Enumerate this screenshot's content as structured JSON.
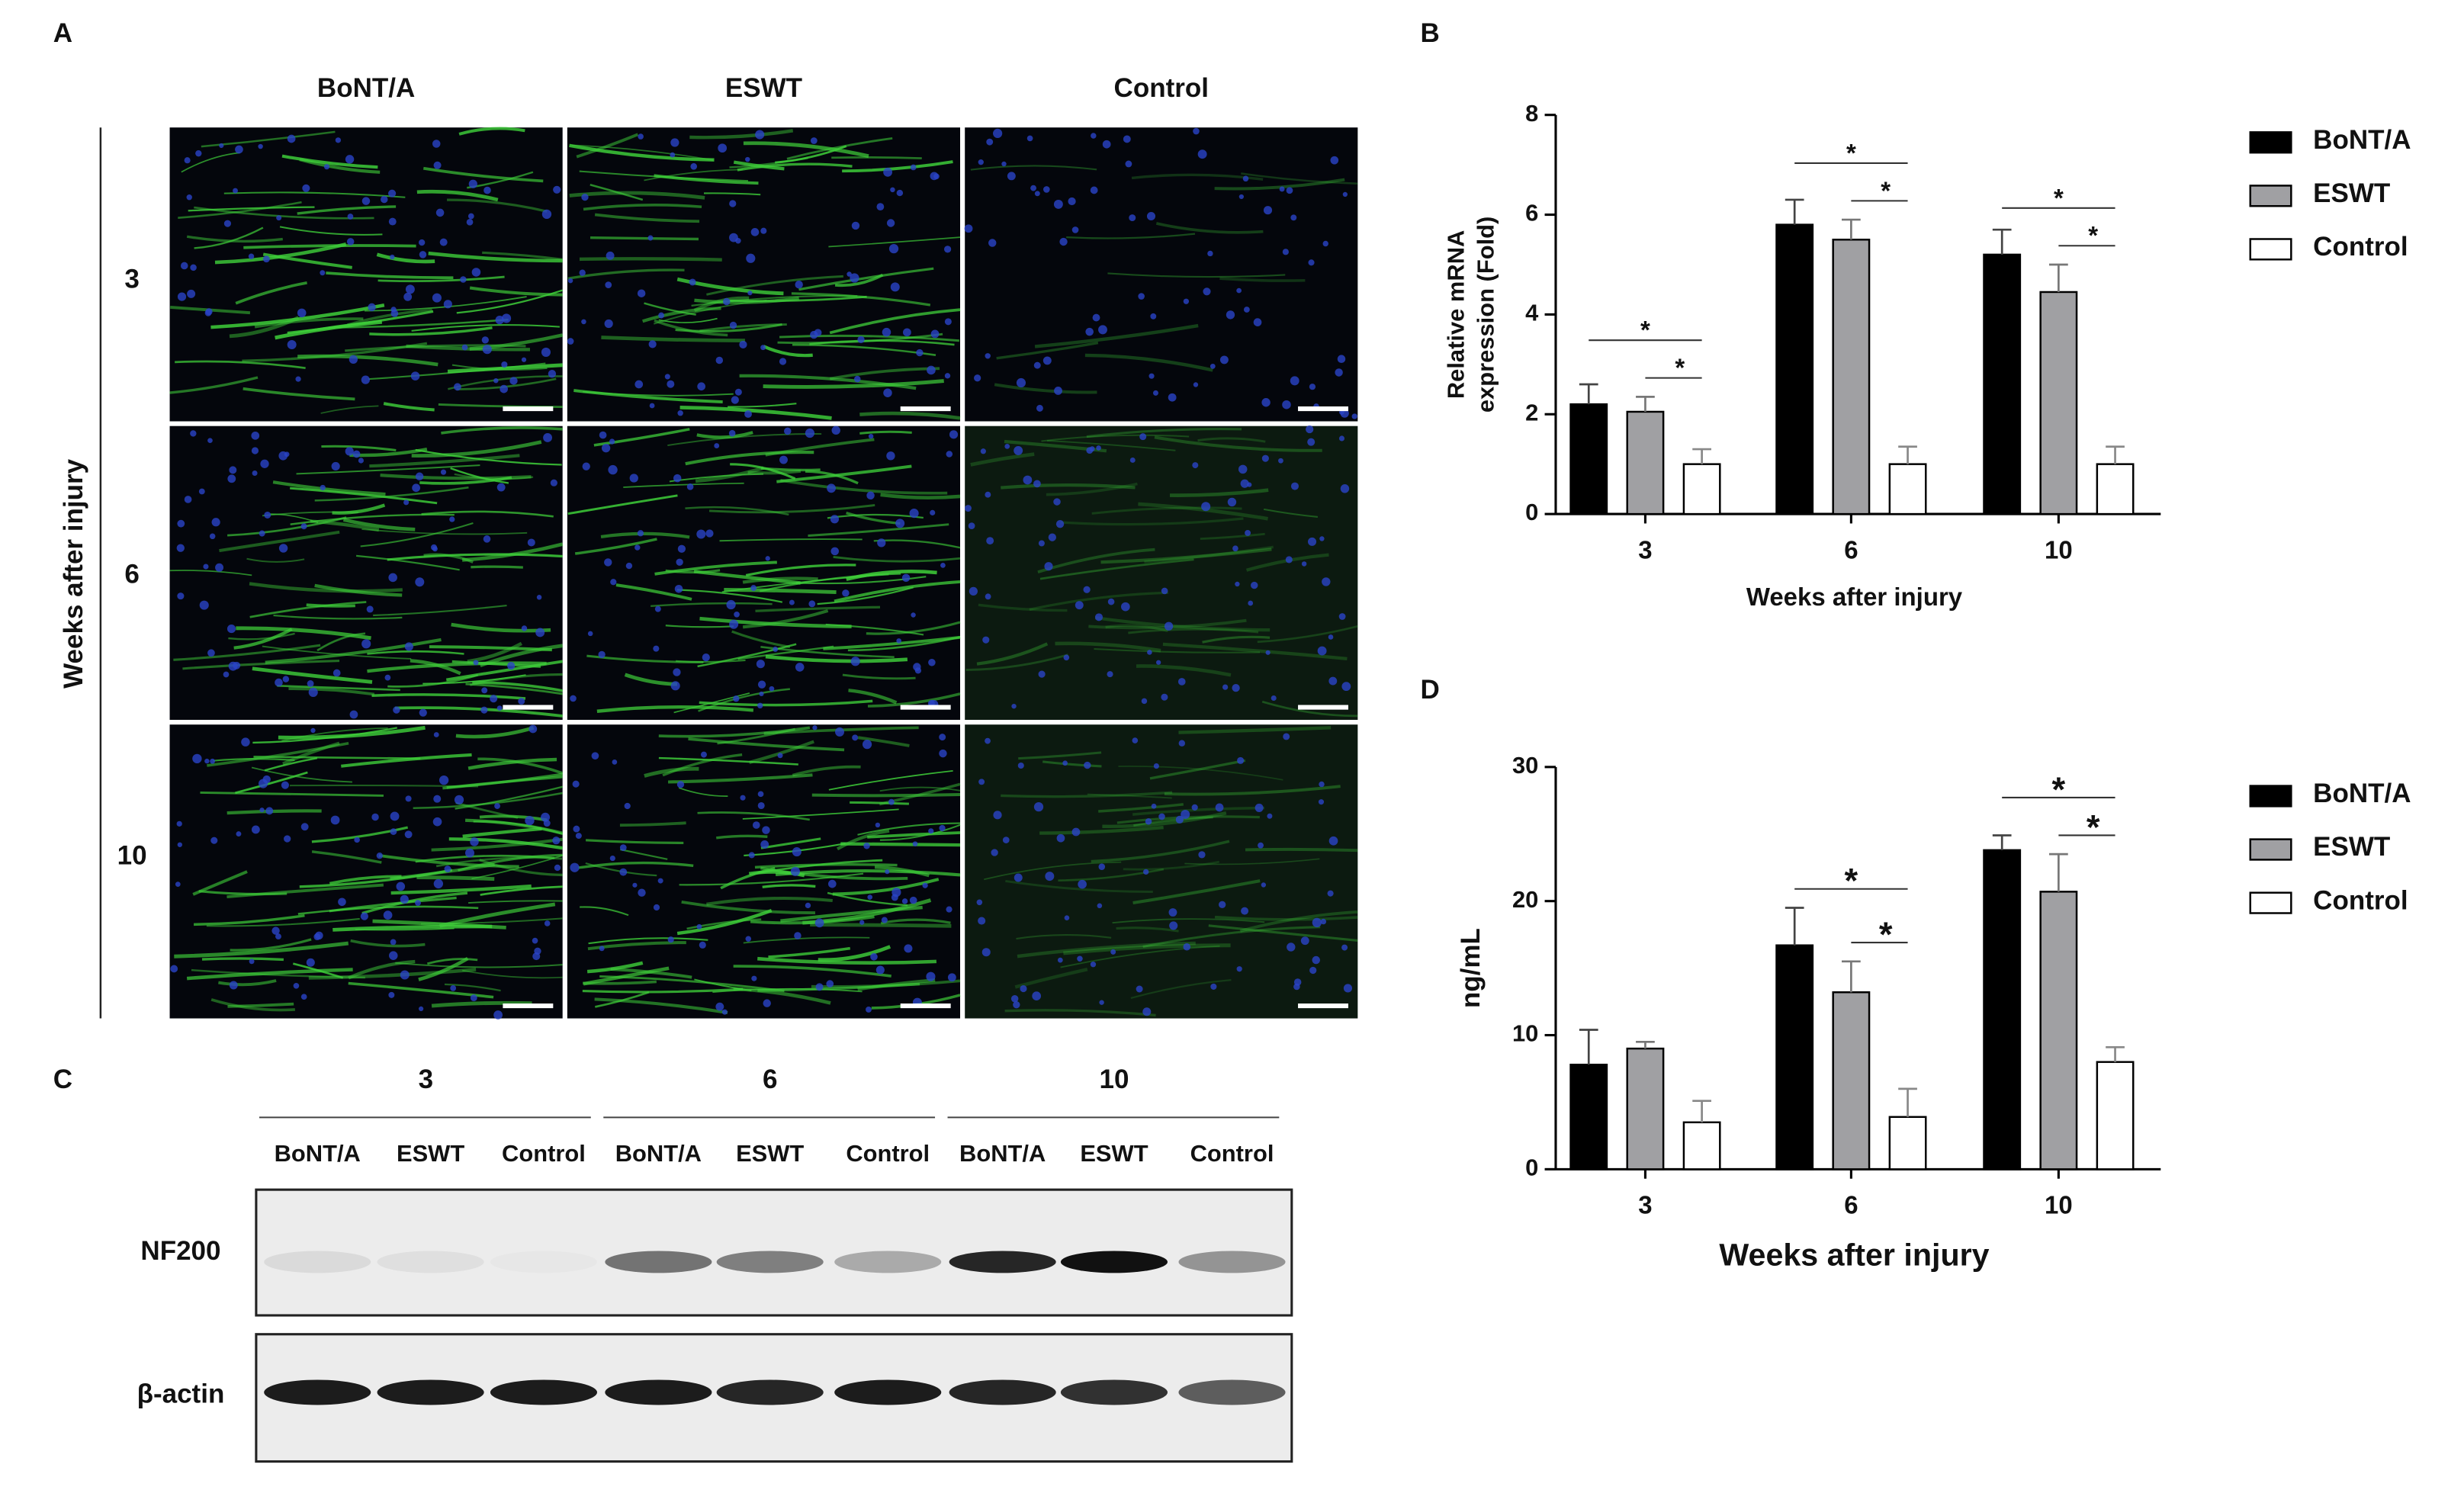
{
  "panels": {
    "a": "A",
    "b": "B",
    "c": "C",
    "d": "D"
  },
  "immunofluorescence": {
    "columns": [
      "BoNT/A",
      "ESWT",
      "Control"
    ],
    "rows": [
      "3",
      "6",
      "10"
    ],
    "row_axis_label": "Weeks after injury"
  },
  "western_blot": {
    "groups": [
      "3",
      "6",
      "10"
    ],
    "lanes": [
      "BoNT/A",
      "ESWT",
      "Control",
      "BoNT/A",
      "ESWT",
      "Control",
      "BoNT/A",
      "ESWT",
      "Control"
    ],
    "proteins": [
      "NF200",
      "β-actin"
    ]
  },
  "chart_data": [
    {
      "type": "bar",
      "y_label": [
        "Relative mRNA",
        "expression (Fold)"
      ],
      "x_label": "Weeks after injury",
      "categories": [
        "3",
        "6",
        "10"
      ],
      "series": [
        {
          "name": "BoNT/A",
          "color": "#000000",
          "values": [
            2.2,
            5.8,
            5.2
          ],
          "errors": [
            0.4,
            0.5,
            0.5
          ]
        },
        {
          "name": "ESWT",
          "color": "#a0a0a3",
          "values": [
            2.05,
            5.5,
            4.45
          ],
          "errors": [
            0.3,
            0.4,
            0.55
          ]
        },
        {
          "name": "Control",
          "color": "#ffffff",
          "values": [
            1,
            1,
            1
          ],
          "errors": [
            0.3,
            0.35,
            0.35
          ]
        }
      ],
      "ylim": [
        0,
        8
      ],
      "yticks": [
        0,
        2,
        4,
        6,
        8
      ],
      "significance": [
        {
          "category": "3",
          "series": [
            "ESWT",
            "Control"
          ],
          "label": "*"
        },
        {
          "category": "3",
          "series": [
            "BoNT/A",
            "Control"
          ],
          "label": "*"
        },
        {
          "category": "6",
          "series": [
            "ESWT",
            "Control"
          ],
          "label": "*"
        },
        {
          "category": "6",
          "series": [
            "BoNT/A",
            "Control"
          ],
          "label": "*"
        },
        {
          "category": "10",
          "series": [
            "ESWT",
            "Control"
          ],
          "label": "*"
        },
        {
          "category": "10",
          "series": [
            "BoNT/A",
            "Control"
          ],
          "label": "*"
        }
      ]
    },
    {
      "type": "bar",
      "y_label": [
        "ng/mL"
      ],
      "x_label": "Weeks after injury",
      "categories": [
        "3",
        "6",
        "10"
      ],
      "series": [
        {
          "name": "BoNT/A",
          "color": "#000000",
          "values": [
            7.8,
            16.7,
            23.8
          ],
          "errors": [
            2.6,
            2.8,
            1.1
          ]
        },
        {
          "name": "ESWT",
          "color": "#a0a0a3",
          "values": [
            9,
            13.2,
            20.7
          ],
          "errors": [
            0.5,
            2.3,
            2.8
          ]
        },
        {
          "name": "Control",
          "color": "#ffffff",
          "values": [
            3.5,
            3.9,
            8
          ],
          "errors": [
            1.6,
            2.1,
            1.1
          ]
        }
      ],
      "ylim": [
        0,
        30
      ],
      "yticks": [
        0,
        10,
        20,
        30
      ],
      "significance": [
        {
          "category": "6",
          "series": [
            "ESWT",
            "Control"
          ],
          "label": "*"
        },
        {
          "category": "6",
          "series": [
            "BoNT/A",
            "Control"
          ],
          "label": "*"
        },
        {
          "category": "10",
          "series": [
            "ESWT",
            "Control"
          ],
          "label": "*"
        },
        {
          "category": "10",
          "series": [
            "BoNT/A",
            "Control"
          ],
          "label": "*"
        }
      ]
    }
  ]
}
